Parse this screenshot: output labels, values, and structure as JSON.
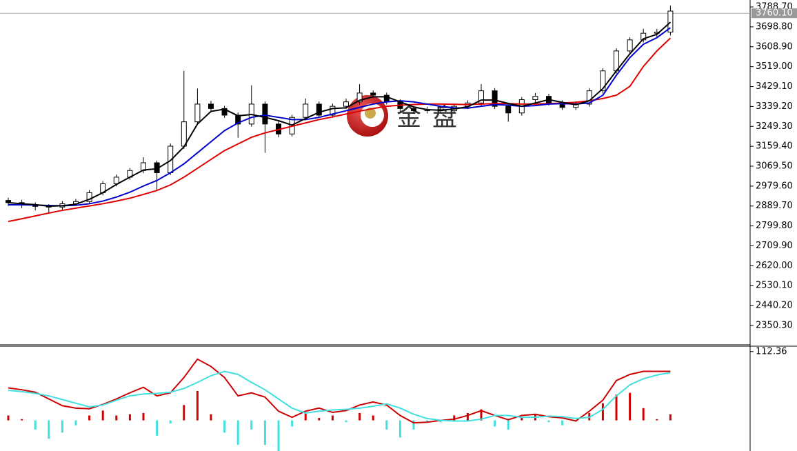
{
  "chart_data": [
    {
      "type": "candlestick",
      "open": [
        2915,
        2905,
        2895,
        2888,
        2885,
        2900,
        2910,
        2950,
        2990,
        3020,
        3050,
        3085,
        3040,
        3160,
        3270,
        3350,
        3330,
        3300,
        3260,
        3350,
        3260,
        3215,
        3290,
        3350,
        3300,
        3340,
        3360,
        3400,
        3390,
        3360,
        3330,
        3320,
        3325,
        3320,
        3340,
        3355,
        3410,
        3340,
        3310,
        3370,
        3385,
        3355,
        3335,
        3350,
        3410,
        3500,
        3590,
        3640,
        3670,
        3675
      ],
      "high": [
        2928,
        2918,
        2906,
        2898,
        2912,
        2922,
        2962,
        3002,
        3032,
        3062,
        3110,
        3095,
        3172,
        3500,
        3420,
        3365,
        3342,
        3312,
        3435,
        3362,
        3272,
        3302,
        3375,
        3362,
        3352,
        3375,
        3440,
        3412,
        3402,
        3372,
        3340,
        3338,
        3337,
        3352,
        3367,
        3440,
        3422,
        3352,
        3382,
        3400,
        3397,
        3367,
        3362,
        3422,
        3512,
        3602,
        3652,
        3690,
        3690,
        3795
      ],
      "low": [
        2890,
        2880,
        2870,
        2855,
        2872,
        2892,
        2898,
        2938,
        2978,
        3008,
        3038,
        2960,
        3030,
        3148,
        3258,
        3318,
        3288,
        3198,
        3248,
        3130,
        3200,
        3203,
        3278,
        3288,
        3288,
        3328,
        3348,
        3378,
        3348,
        3318,
        3308,
        3308,
        3308,
        3308,
        3328,
        3343,
        3328,
        3270,
        3298,
        3358,
        3343,
        3323,
        3323,
        3338,
        3398,
        3488,
        3578,
        3628,
        3648,
        3660
      ],
      "close": [
        2905,
        2895,
        2888,
        2885,
        2900,
        2910,
        2950,
        2990,
        3020,
        3050,
        3085,
        3040,
        3160,
        3270,
        3350,
        3330,
        3300,
        3260,
        3350,
        3260,
        3215,
        3290,
        3350,
        3300,
        3340,
        3360,
        3400,
        3390,
        3360,
        3330,
        3320,
        3325,
        3320,
        3340,
        3355,
        3410,
        3340,
        3310,
        3370,
        3385,
        3355,
        3335,
        3350,
        3410,
        3500,
        3590,
        3640,
        3670,
        3675,
        3770
      ],
      "up_color": "#ffffff",
      "down_color": "#000000",
      "series": [
        {
          "color": "#e00000",
          "values": [
            2820,
            2832,
            2845,
            2858,
            2870,
            2880,
            2890,
            2900,
            2912,
            2925,
            2942,
            2960,
            2985,
            3020,
            3060,
            3100,
            3140,
            3170,
            3200,
            3220,
            3235,
            3250,
            3265,
            3280,
            3292,
            3305,
            3318,
            3330,
            3340,
            3345,
            3348,
            3350,
            3350,
            3349,
            3348,
            3350,
            3352,
            3352,
            3350,
            3350,
            3352,
            3355,
            3358,
            3365,
            3375,
            3390,
            3430,
            3520,
            3590,
            3648
          ]
        },
        {
          "color": "#0000cc",
          "values": [
            2895,
            2895,
            2894,
            2892,
            2891,
            2893,
            2900,
            2912,
            2930,
            2952,
            2980,
            3005,
            3040,
            3080,
            3130,
            3180,
            3230,
            3265,
            3290,
            3300,
            3290,
            3280,
            3280,
            3290,
            3305,
            3320,
            3335,
            3350,
            3360,
            3365,
            3360,
            3350,
            3340,
            3333,
            3332,
            3340,
            3348,
            3345,
            3340,
            3343,
            3350,
            3352,
            3350,
            3355,
            3390,
            3480,
            3560,
            3620,
            3650,
            3695
          ]
        },
        {
          "color": "#000000",
          "values": [
            2905,
            2900,
            2896,
            2889,
            2891,
            2898,
            2920,
            2950,
            2987,
            3020,
            3052,
            3058,
            3095,
            3157,
            3260,
            3317,
            3327,
            3297,
            3303,
            3290,
            3275,
            3255,
            3285,
            3313,
            3330,
            3333,
            3367,
            3383,
            3383,
            3360,
            3337,
            3325,
            3322,
            3328,
            3338,
            3368,
            3368,
            3353,
            3340,
            3355,
            3370,
            3358,
            3347,
            3365,
            3420,
            3500,
            3577,
            3645,
            3665,
            3720
          ]
        }
      ],
      "current_price": {
        "value": 3760.1,
        "label": "3760.10"
      },
      "ylim": [
        2263,
        3820
      ],
      "yticks": [
        {
          "value": 3788.7,
          "label": "3788.70"
        },
        {
          "value": 3698.8,
          "label": "3698.80"
        },
        {
          "value": 3608.9,
          "label": "3608.90"
        },
        {
          "value": 3519,
          "label": "3519.00"
        },
        {
          "value": 3429.1,
          "label": "3429.10"
        },
        {
          "value": 3339.2,
          "label": "3339.20"
        },
        {
          "value": 3249.3,
          "label": "3249.30"
        },
        {
          "value": 3159.4,
          "label": "3159.40"
        },
        {
          "value": 3069.5,
          "label": "3069.50"
        },
        {
          "value": 2979.6,
          "label": "2979.60"
        },
        {
          "value": 2889.7,
          "label": "2889.70"
        },
        {
          "value": 2799.8,
          "label": "2799.80"
        },
        {
          "value": 2709.9,
          "label": "2709.90"
        },
        {
          "value": 2620,
          "label": "2620.00"
        },
        {
          "value": 2530.1,
          "label": "2530.10"
        },
        {
          "value": 2440.2,
          "label": "2440.20"
        },
        {
          "value": 2350.3,
          "label": "2350.30"
        }
      ],
      "watermark": "金盘"
    },
    {
      "type": "macd",
      "histogram": [
        8,
        2,
        -15,
        -30,
        -20,
        -8,
        8,
        16,
        8,
        10,
        12,
        -25,
        -5,
        25,
        48,
        10,
        -20,
        -40,
        -15,
        -40,
        -50,
        -10,
        12,
        4,
        8,
        -3,
        12,
        8,
        -15,
        -28,
        -15,
        -3,
        -3,
        8,
        12,
        18,
        -10,
        -15,
        6,
        10,
        -3,
        -8,
        -2,
        12,
        28,
        42,
        45,
        20,
        2,
        10
      ],
      "pos_color": "#d00000",
      "neg_color": "#40e0e0",
      "macd": [
        53,
        50,
        46,
        35,
        24,
        20,
        19,
        26,
        35,
        45,
        54,
        40,
        45,
        70,
        100,
        88,
        70,
        40,
        45,
        38,
        15,
        5,
        15,
        20,
        13,
        16,
        25,
        30,
        25,
        8,
        -4,
        -3,
        0,
        2,
        8,
        16,
        8,
        1,
        8,
        10,
        6,
        4,
        -1,
        15,
        33,
        65,
        75,
        80,
        80,
        80
      ],
      "macd_color": "#cc0000",
      "signal": [
        49,
        47,
        44,
        40,
        34,
        28,
        22,
        25,
        33,
        40,
        43,
        44,
        46,
        52,
        62,
        73,
        80,
        75,
        62,
        50,
        35,
        20,
        12,
        15,
        17,
        18,
        20,
        23,
        27,
        20,
        10,
        3,
        0,
        -1,
        -1,
        2,
        8,
        8,
        5,
        5,
        7,
        6,
        3,
        5,
        18,
        40,
        58,
        68,
        74,
        78
      ],
      "signal_color": "#40e0e0",
      "ylim": [
        -50,
        120
      ],
      "yticks": [
        112.36
      ]
    }
  ]
}
